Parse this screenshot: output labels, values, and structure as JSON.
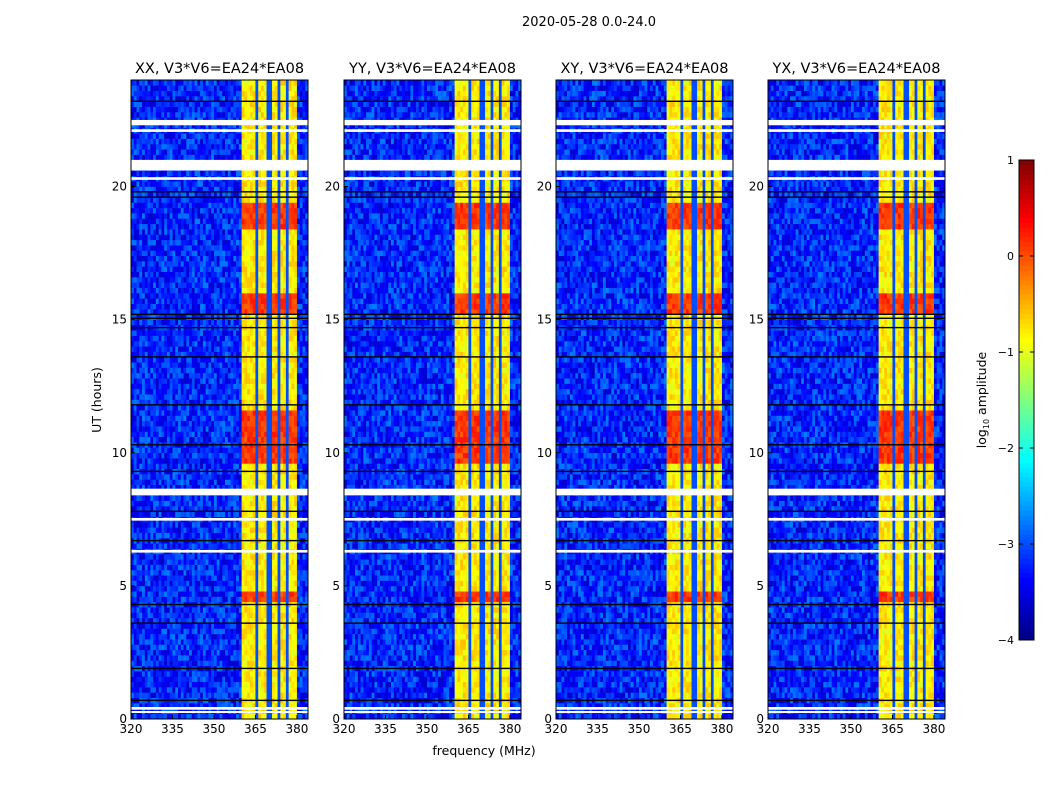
{
  "chart_data": {
    "type": "heatmap",
    "title": "2020-05-28 0.0-24.0",
    "xlabel": "frequency (MHz)",
    "ylabel": "UT (hours)",
    "xlim": [
      320,
      384
    ],
    "ylim": [
      0,
      24
    ],
    "xticks": [
      "320",
      "335",
      "350",
      "365",
      "380"
    ],
    "xtick_values": [
      320,
      335,
      350,
      365,
      380
    ],
    "yticks": [
      "0",
      "5",
      "10",
      "15",
      "20"
    ],
    "ytick_values": [
      0,
      5,
      10,
      15,
      20
    ],
    "panels": [
      {
        "title": "XX, V3*V6=EA24*EA08"
      },
      {
        "title": "YY, V3*V6=EA24*EA08"
      },
      {
        "title": "XY, V3*V6=EA24*EA08"
      },
      {
        "title": "YX, V3*V6=EA24*EA08"
      }
    ],
    "background_log10_amplitude": -3.2,
    "rfi_band_MHz": [
      360.5,
      380
    ],
    "rfi_log10_amplitude": -0.8,
    "rfi_peak_hours": [
      [
        15.3,
        16.0
      ],
      [
        9.6,
        11.6
      ],
      [
        18.5,
        19.4
      ],
      [
        4.4,
        4.8
      ]
    ],
    "rfi_peak_log10_amplitude": 0.1,
    "channel_gaps_MHz": [
      365.3,
      370,
      373.5,
      376.5
    ],
    "flagged_hours": [
      [
        22.3,
        22.5
      ],
      [
        22.05,
        22.15
      ],
      [
        20.6,
        21.0
      ],
      [
        20.25,
        20.35
      ],
      [
        8.4,
        8.65
      ],
      [
        7.45,
        7.55
      ],
      [
        6.25,
        6.35
      ],
      [
        0.35,
        0.45
      ],
      [
        0.25,
        0.3
      ]
    ],
    "dark_rows_hours": [
      23.2,
      19.8,
      19.6,
      15.2,
      15.05,
      14.7,
      13.6,
      11.8,
      10.3,
      9.3,
      7.8,
      6.7,
      4.3,
      3.6,
      1.9,
      0.7
    ],
    "colorbar": {
      "label": "log10 amplitude",
      "label_main": "log",
      "label_sub": "10",
      "label_rest": " amplitude",
      "range": [
        -4,
        1
      ],
      "ticks": [
        "1",
        "0",
        "−1",
        "−2",
        "−3",
        "−4"
      ],
      "tick_values": [
        1,
        0,
        -1,
        -2,
        -3,
        -4
      ],
      "colormap": "jet"
    }
  }
}
